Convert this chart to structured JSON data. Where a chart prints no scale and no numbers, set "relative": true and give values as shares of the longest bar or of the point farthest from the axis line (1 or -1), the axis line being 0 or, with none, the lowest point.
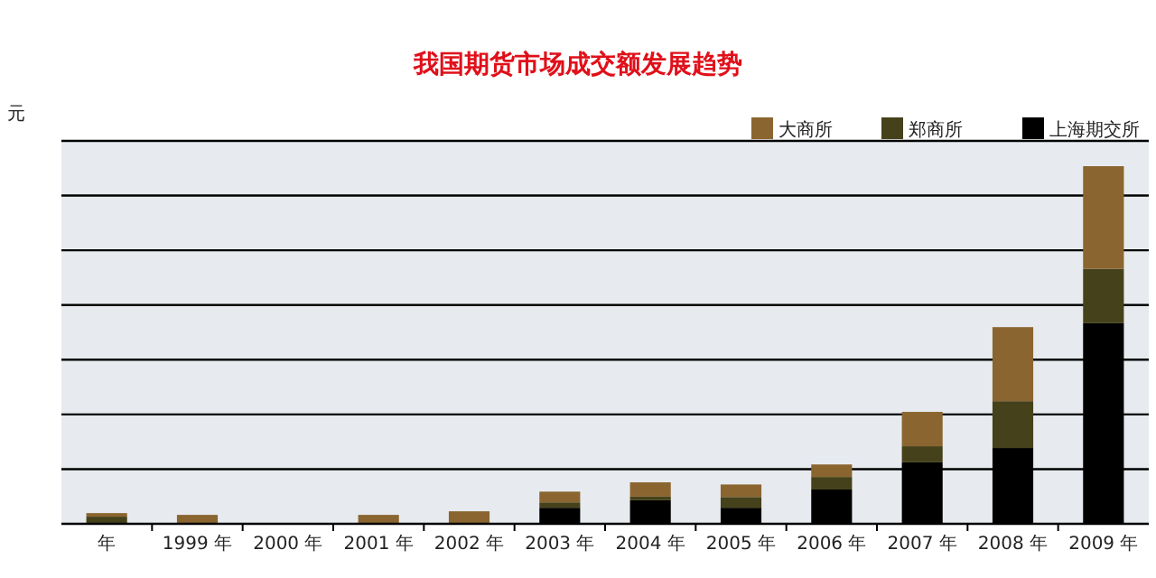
{
  "chart_data": {
    "type": "bar",
    "title": "我国期货市场成交额发展趋势",
    "ylabel": "元",
    "relative": true,
    "stacked": true,
    "grid": "y",
    "legend": "top right",
    "categories": [
      "年",
      "1999 年",
      "2000 年",
      "2001 年",
      "2002 年",
      "2003 年",
      "2004 年",
      "2005 年",
      "2006 年",
      "2007 年",
      "2008 年",
      "2009 年"
    ],
    "series": [
      {
        "name": "上海期交所",
        "color": "#000000",
        "values": [
          0,
          0,
          0,
          0,
          0,
          0.045,
          0.066,
          0.045,
          0.096,
          0.172,
          0.212,
          0.561
        ]
      },
      {
        "name": "郑商所",
        "color": "#45421b",
        "values": [
          0.02,
          0,
          0,
          0,
          0,
          0.015,
          0.01,
          0.03,
          0.035,
          0.045,
          0.131,
          0.152
        ]
      },
      {
        "name": "大商所",
        "color": "#8b6530",
        "values": [
          0.01,
          0.025,
          0,
          0.025,
          0.035,
          0.03,
          0.04,
          0.035,
          0.035,
          0.096,
          0.207,
          0.287
        ]
      }
    ]
  }
}
